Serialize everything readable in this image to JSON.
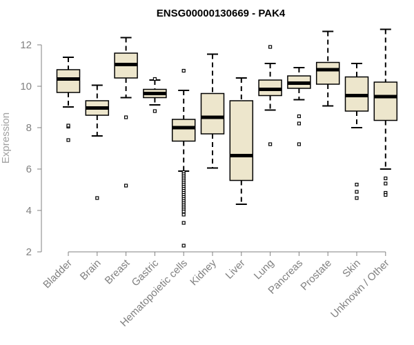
{
  "chart_data": {
    "type": "boxplot",
    "title": "ENSG00000130669 - PAK4",
    "xlabel": "",
    "ylabel": "Expression",
    "ylim": [
      2,
      12.8
    ],
    "yticks": [
      2,
      4,
      6,
      8,
      10,
      12
    ],
    "box_fill": "#ede6cc",
    "box_stroke": "#000000",
    "categories": [
      "Bladder",
      "Brain",
      "Breast",
      "Gastric",
      "Hematopoietic cells",
      "Kidney",
      "Liver",
      "Lung",
      "Pancreas",
      "Prostate",
      "Skin",
      "Unknown / Other"
    ],
    "boxes": [
      {
        "category": "Bladder",
        "whisker_low": 9.0,
        "q1": 9.7,
        "median": 10.35,
        "q3": 10.8,
        "whisker_high": 11.4,
        "outliers": [
          8.05,
          8.1,
          7.4
        ]
      },
      {
        "category": "Brain",
        "whisker_low": 7.6,
        "q1": 8.6,
        "median": 8.95,
        "q3": 9.3,
        "whisker_high": 10.05,
        "outliers": [
          4.6
        ]
      },
      {
        "category": "Breast",
        "whisker_low": 9.45,
        "q1": 10.4,
        "median": 11.05,
        "q3": 11.6,
        "whisker_high": 12.35,
        "outliers": [
          8.5,
          5.2
        ]
      },
      {
        "category": "Gastric",
        "whisker_low": 9.1,
        "q1": 9.45,
        "median": 9.65,
        "q3": 9.85,
        "whisker_high": 10.3,
        "outliers": [
          10.35,
          8.8
        ]
      },
      {
        "category": "Hematopoietic cells",
        "whisker_low": 5.9,
        "q1": 7.35,
        "median": 8.0,
        "q3": 8.4,
        "whisker_high": 9.8,
        "outliers": [
          10.75,
          5.85,
          5.75,
          5.65,
          5.55,
          5.45,
          5.35,
          5.25,
          5.15,
          5.05,
          4.95,
          4.85,
          4.75,
          4.65,
          4.55,
          4.45,
          4.35,
          4.25,
          4.15,
          4.05,
          3.95,
          3.8,
          3.4,
          2.3
        ]
      },
      {
        "category": "Kidney",
        "whisker_low": 6.05,
        "q1": 7.7,
        "median": 8.5,
        "q3": 9.65,
        "whisker_high": 11.55,
        "outliers": []
      },
      {
        "category": "Liver",
        "whisker_low": 4.3,
        "q1": 5.45,
        "median": 6.65,
        "q3": 9.3,
        "whisker_high": 10.4,
        "outliers": []
      },
      {
        "category": "Lung",
        "whisker_low": 8.85,
        "q1": 9.55,
        "median": 9.85,
        "q3": 10.3,
        "whisker_high": 11.1,
        "outliers": [
          11.9,
          7.2
        ]
      },
      {
        "category": "Pancreas",
        "whisker_low": 9.35,
        "q1": 9.9,
        "median": 10.15,
        "q3": 10.5,
        "whisker_high": 10.9,
        "outliers": [
          8.55,
          8.2,
          7.2
        ]
      },
      {
        "category": "Prostate",
        "whisker_low": 9.05,
        "q1": 10.1,
        "median": 10.8,
        "q3": 11.15,
        "whisker_high": 12.65,
        "outliers": []
      },
      {
        "category": "Skin",
        "whisker_low": 8.0,
        "q1": 8.8,
        "median": 9.55,
        "q3": 10.45,
        "whisker_high": 11.1,
        "outliers": [
          5.25,
          4.9,
          4.6
        ]
      },
      {
        "category": "Unknown / Other",
        "whisker_low": 6.0,
        "q1": 8.35,
        "median": 9.5,
        "q3": 10.2,
        "whisker_high": 12.75,
        "outliers": [
          5.55,
          5.3,
          4.85,
          4.75
        ]
      }
    ]
  }
}
